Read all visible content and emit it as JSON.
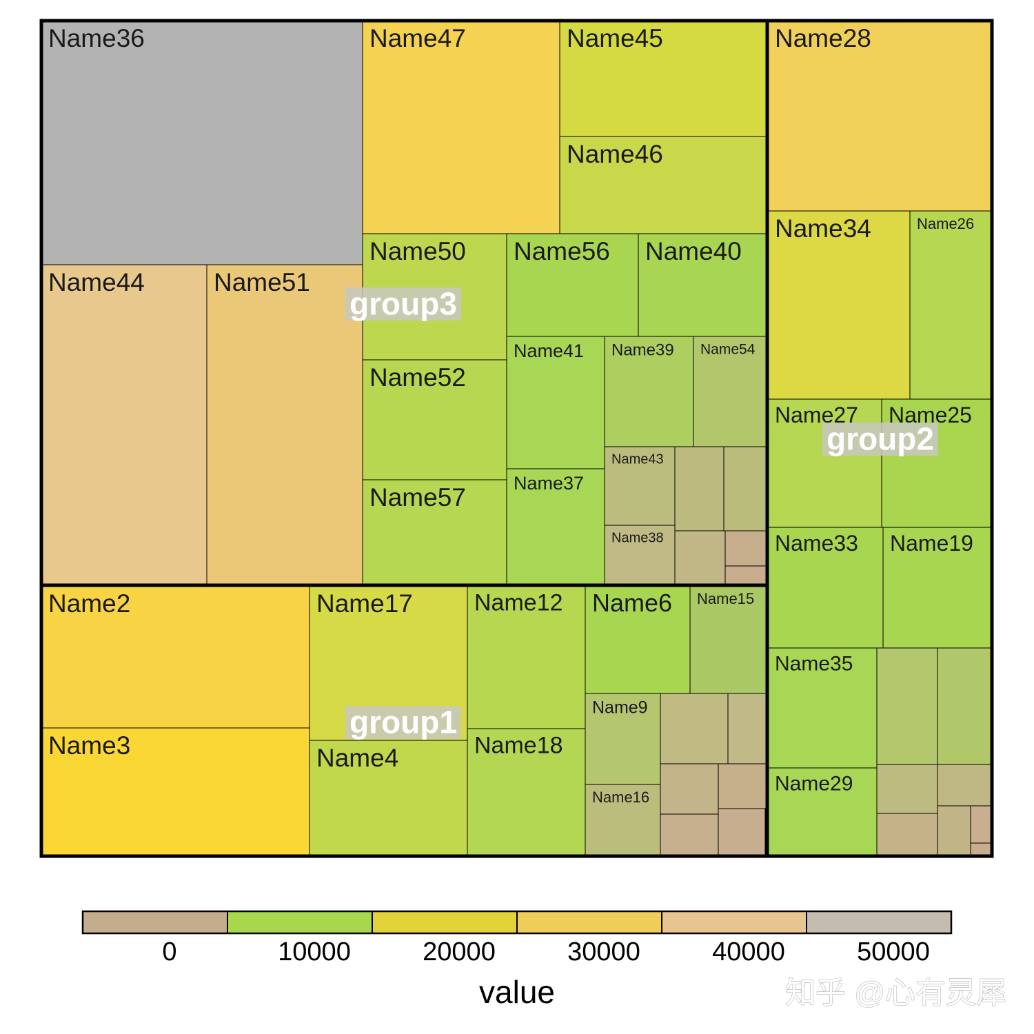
{
  "chart_data": {
    "type": "treemap",
    "color_scale": {
      "title": "value",
      "breaks": [
        0,
        10000,
        20000,
        30000,
        40000,
        50000
      ],
      "tick_labels": [
        "0",
        "10000",
        "20000",
        "30000",
        "40000",
        "50000"
      ],
      "colors": [
        "#c4ad8c",
        "#a8d64d",
        "#e3d33b",
        "#f0cd59",
        "#e6c58f",
        "#c4bcae"
      ]
    },
    "groups": [
      {
        "name": "group3",
        "label": "group3"
      },
      {
        "name": "group1",
        "label": "group1"
      },
      {
        "name": "group2",
        "label": "group2"
      }
    ],
    "tiles": [
      {
        "name": "Name36",
        "label": "Name36",
        "group": "group3",
        "color": "#b3b3b3"
      },
      {
        "name": "Name44",
        "label": "Name44",
        "group": "group3",
        "color": "#e8c88c"
      },
      {
        "name": "Name51",
        "label": "Name51",
        "group": "group3",
        "color": "#eac877"
      },
      {
        "name": "Name47",
        "label": "Name47",
        "group": "group3",
        "color": "#f4d252"
      },
      {
        "name": "Name45",
        "label": "Name45",
        "group": "group3",
        "color": "#d6da42"
      },
      {
        "name": "Name46",
        "label": "Name46",
        "group": "group3",
        "color": "#c9d84a"
      },
      {
        "name": "Name50",
        "label": "Name50",
        "group": "group3",
        "color": "#bdd74e"
      },
      {
        "name": "Name52",
        "label": "Name52",
        "group": "group3",
        "color": "#b7d751"
      },
      {
        "name": "Name57",
        "label": "Name57",
        "group": "group3",
        "color": "#b5d752"
      },
      {
        "name": "Name56",
        "label": "Name56",
        "group": "group3",
        "color": "#a8d651"
      },
      {
        "name": "Name40",
        "label": "Name40",
        "group": "group3",
        "color": "#a9d652"
      },
      {
        "name": "Name41",
        "label": "Name41",
        "group": "group3",
        "color": "#a8d655"
      },
      {
        "name": "Name39",
        "label": "Name39",
        "group": "group3",
        "color": "#accf5f"
      },
      {
        "name": "Name54",
        "label": "Name54",
        "group": "group3",
        "color": "#b2c76b"
      },
      {
        "name": "Name37",
        "label": "Name37",
        "group": "group3",
        "color": "#a8d655"
      },
      {
        "name": "Name43",
        "label": "Name43",
        "group": "group3",
        "color": "#bbbd7e"
      },
      {
        "name": "Name38",
        "label": "Name38",
        "group": "group3",
        "color": "#c0ba84"
      },
      {
        "name": "",
        "label": "",
        "group": "group3",
        "color": "#bcba7f"
      },
      {
        "name": "",
        "label": "",
        "group": "group3",
        "color": "#b9bc7b"
      },
      {
        "name": "",
        "label": "",
        "group": "group3",
        "color": "#c1b686"
      },
      {
        "name": "",
        "label": "",
        "group": "group3",
        "color": "#c6ae8c"
      },
      {
        "name": "",
        "label": "",
        "group": "group3",
        "color": "#c7ac8e"
      },
      {
        "name": "Name2",
        "label": "Name2",
        "group": "group1",
        "color": "#f8d445"
      },
      {
        "name": "Name3",
        "label": "Name3",
        "group": "group1",
        "color": "#fad735"
      },
      {
        "name": "Name17",
        "label": "Name17",
        "group": "group1",
        "color": "#d6da46"
      },
      {
        "name": "Name4",
        "label": "Name4",
        "group": "group1",
        "color": "#c1d84d"
      },
      {
        "name": "Name12",
        "label": "Name12",
        "group": "group1",
        "color": "#b7d751"
      },
      {
        "name": "Name18",
        "label": "Name18",
        "group": "group1",
        "color": "#b3d752"
      },
      {
        "name": "Name6",
        "label": "Name6",
        "group": "group1",
        "color": "#a8d651"
      },
      {
        "name": "Name15",
        "label": "Name15",
        "group": "group1",
        "color": "#aac964"
      },
      {
        "name": "Name9",
        "label": "Name9",
        "group": "group1",
        "color": "#b4c66f"
      },
      {
        "name": "Name16",
        "label": "Name16",
        "group": "group1",
        "color": "#bbbd7c"
      },
      {
        "name": "",
        "label": "",
        "group": "group1",
        "color": "#c0ba83"
      },
      {
        "name": "",
        "label": "",
        "group": "group1",
        "color": "#c1b987"
      },
      {
        "name": "",
        "label": "",
        "group": "group1",
        "color": "#c3b489"
      },
      {
        "name": "",
        "label": "",
        "group": "group1",
        "color": "#c6b08b"
      },
      {
        "name": "",
        "label": "",
        "group": "group1",
        "color": "#c6b08d"
      },
      {
        "name": "",
        "label": "",
        "group": "group1",
        "color": "#c7ae8e"
      },
      {
        "name": "",
        "label": "",
        "group": "group1",
        "color": "#c5ab8d"
      },
      {
        "name": "",
        "label": "",
        "group": "group1",
        "color": "#c5ab8d"
      },
      {
        "name": "Name28",
        "label": "Name28",
        "group": "group2",
        "color": "#f1d05a"
      },
      {
        "name": "Name34",
        "label": "Name34",
        "group": "group2",
        "color": "#dcd944"
      },
      {
        "name": "Name26",
        "label": "Name26",
        "group": "group2",
        "color": "#b5d752"
      },
      {
        "name": "Name27",
        "label": "Name27",
        "group": "group2",
        "color": "#b5d752"
      },
      {
        "name": "Name25",
        "label": "Name25",
        "group": "group2",
        "color": "#aad64f"
      },
      {
        "name": "Name33",
        "label": "Name33",
        "group": "group2",
        "color": "#a8d651"
      },
      {
        "name": "Name19",
        "label": "Name19",
        "group": "group2",
        "color": "#a8d651"
      },
      {
        "name": "Name35",
        "label": "Name35",
        "group": "group2",
        "color": "#a8d655"
      },
      {
        "name": "Name29",
        "label": "Name29",
        "group": "group2",
        "color": "#a8d655"
      },
      {
        "name": "",
        "label": "",
        "group": "group2",
        "color": "#b3c76d"
      },
      {
        "name": "",
        "label": "",
        "group": "group2",
        "color": "#b1c86a"
      },
      {
        "name": "",
        "label": "",
        "group": "group2",
        "color": "#bebb80"
      },
      {
        "name": "",
        "label": "",
        "group": "group2",
        "color": "#bfb884"
      },
      {
        "name": "",
        "label": "",
        "group": "group2",
        "color": "#c4b389"
      },
      {
        "name": "",
        "label": "",
        "group": "group2",
        "color": "#c1b486"
      },
      {
        "name": "",
        "label": "",
        "group": "group2",
        "color": "#c9ae8f"
      },
      {
        "name": "",
        "label": "",
        "group": "group2",
        "color": "#c7ac8e"
      }
    ]
  },
  "watermark": "知乎 @心有灵犀"
}
